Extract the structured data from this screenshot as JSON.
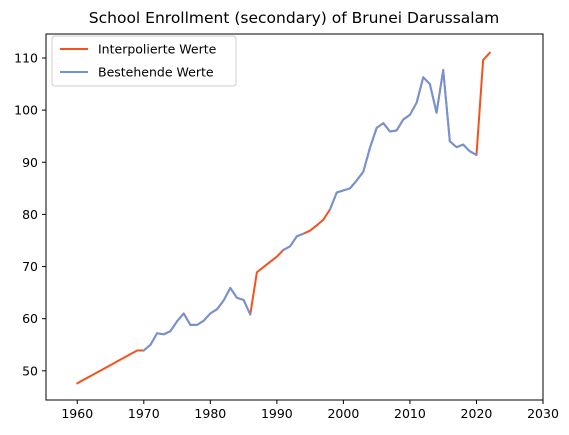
{
  "chart_data": {
    "type": "line",
    "title": "School Enrollment (secondary) of Brunei Darussalam",
    "xlabel": "",
    "ylabel": "",
    "xlim": [
      1955.3,
      2030
    ],
    "ylim": [
      44.4,
      114.6
    ],
    "xticks": [
      1960,
      1970,
      1980,
      1990,
      2000,
      2010,
      2020,
      2030
    ],
    "yticks": [
      50,
      60,
      70,
      80,
      90,
      100,
      110
    ],
    "legend_position": "top-left",
    "grid": false,
    "series": [
      {
        "name": "Interpolierte Werte",
        "color": "#f4511e",
        "x": [
          1960,
          1961,
          1962,
          1963,
          1964,
          1965,
          1966,
          1967,
          1968,
          1969,
          1970,
          1971,
          1972,
          1973,
          1974,
          1975,
          1976,
          1977,
          1978,
          1979,
          1980,
          1981,
          1982,
          1983,
          1984,
          1985,
          1986,
          1987,
          1988,
          1989,
          1990,
          1991,
          1992,
          1993,
          1994,
          1995,
          1996,
          1997,
          1998,
          1999,
          2000,
          2001,
          2002,
          2003,
          2004,
          2005,
          2006,
          2007,
          2008,
          2009,
          2010,
          2011,
          2012,
          2013,
          2014,
          2015,
          2016,
          2017,
          2018,
          2019,
          2020,
          2021,
          2022
        ],
        "values": [
          47.6,
          48.3,
          49.0,
          49.7,
          50.4,
          51.1,
          51.8,
          52.5,
          53.2,
          53.9,
          53.9,
          55.0,
          57.2,
          57.0,
          57.6,
          59.5,
          61.0,
          58.8,
          58.8,
          59.6,
          61.0,
          61.8,
          63.5,
          65.9,
          64.0,
          63.6,
          60.8,
          68.9,
          69.9,
          70.9,
          71.9,
          73.2,
          73.9,
          75.8,
          76.3,
          76.9,
          77.9,
          79.0,
          81.0,
          84.2,
          84.6,
          85.0,
          86.5,
          88.2,
          92.8,
          96.6,
          97.5,
          95.9,
          96.1,
          98.2,
          99.1,
          101.4,
          106.3,
          105.0,
          99.5,
          107.7,
          94.0,
          92.9,
          93.4,
          92.1,
          91.4,
          109.6,
          111.0
        ]
      },
      {
        "name": "Bestehende Werte",
        "color": "#7094d8",
        "x": [
          1970,
          1971,
          1972,
          1973,
          1974,
          1975,
          1976,
          1977,
          1978,
          1979,
          1980,
          1981,
          1982,
          1983,
          1984,
          1985,
          1986,
          null,
          1991,
          1992,
          1993,
          1994,
          null,
          1998,
          1999,
          2000,
          2001,
          2002,
          2003,
          2004,
          2005,
          2006,
          2007,
          2008,
          2009,
          2010,
          2011,
          2012,
          2013,
          2014,
          2015,
          2016,
          2017,
          2018,
          2019,
          2020
        ],
        "values": [
          53.9,
          55.0,
          57.2,
          57.0,
          57.6,
          59.5,
          61.0,
          58.8,
          58.8,
          59.6,
          61.0,
          61.8,
          63.5,
          65.9,
          64.0,
          63.6,
          60.8,
          null,
          73.2,
          73.9,
          75.8,
          76.3,
          null,
          81.0,
          84.2,
          84.6,
          85.0,
          86.5,
          88.2,
          92.8,
          96.6,
          97.5,
          95.9,
          96.1,
          98.2,
          99.1,
          101.4,
          106.3,
          105.0,
          99.5,
          107.7,
          94.0,
          92.9,
          93.4,
          92.1,
          91.4
        ]
      }
    ]
  }
}
